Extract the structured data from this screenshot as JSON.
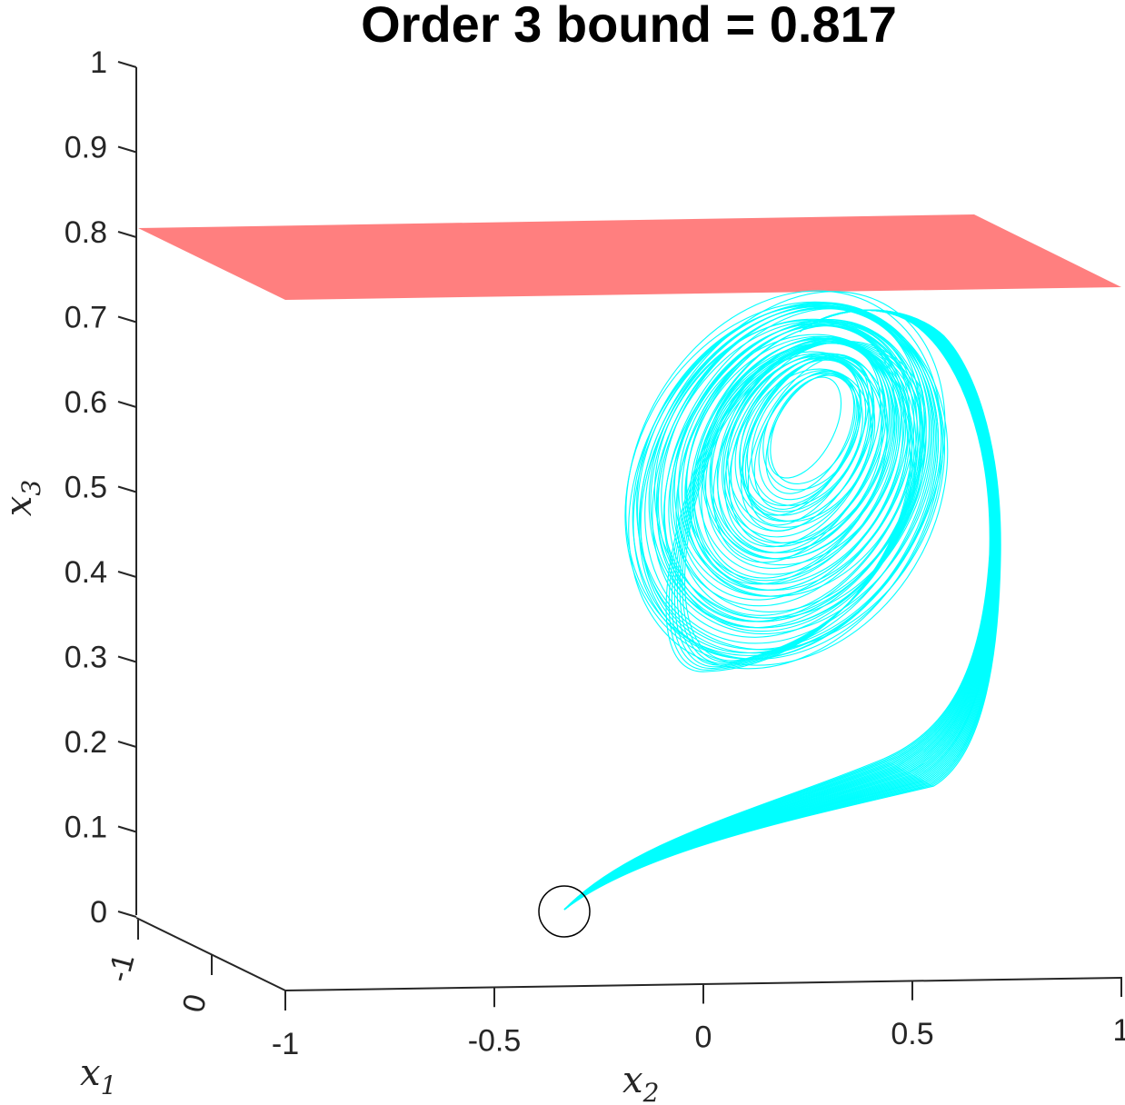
{
  "chart_data": {
    "type": "line",
    "title": "Order 3 bound = 0.817",
    "bound_value": 0.817,
    "axes": {
      "x1": {
        "label": "x",
        "subscript": "1",
        "ticks": [
          "-1",
          "0"
        ]
      },
      "x2": {
        "label": "x",
        "subscript": "2",
        "ticks": [
          "-1",
          "-0.5",
          "0",
          "0.5",
          "1"
        ]
      },
      "x3": {
        "label": "x",
        "subscript": "3",
        "ticks": [
          "0",
          "0.1",
          "0.2",
          "0.3",
          "0.4",
          "0.5",
          "0.6",
          "0.7",
          "0.8",
          "0.9",
          "1"
        ],
        "ylim": [
          0,
          1
        ]
      }
    },
    "series": [
      {
        "kind": "surface",
        "z": 0.817,
        "color": "#ff7f7f"
      },
      {
        "kind": "trajectory",
        "color": "#00ffff",
        "start": {
          "x2": -0.35,
          "x3": 0.0
        }
      },
      {
        "kind": "marker",
        "shape": "circle",
        "color": "#000000",
        "at": {
          "x2": -0.35,
          "x3": 0.0
        }
      }
    ],
    "grid": false
  }
}
